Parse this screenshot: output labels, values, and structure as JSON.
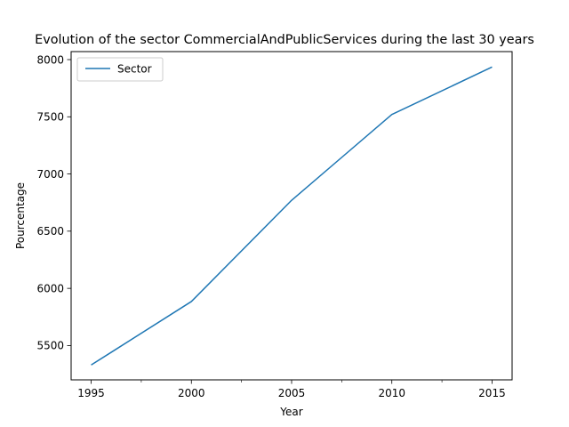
{
  "chart_data": {
    "type": "line",
    "title": "Evolution of the sector CommercialAndPublicServices during the last 30 years",
    "xlabel": "Year",
    "ylabel": "Pourcentage",
    "x": [
      1995,
      2000,
      2005,
      2010,
      2015
    ],
    "series": [
      {
        "name": "Sector",
        "values": [
          5330,
          5885,
          6770,
          7520,
          7935
        ],
        "color": "#1f77b4"
      }
    ],
    "xlim": [
      1994,
      2016
    ],
    "ylim": [
      5200,
      8070
    ],
    "xticks": [
      1995,
      2000,
      2005,
      2010,
      2015
    ],
    "xticks_minor": [
      1997.5,
      2002.5,
      2007.5,
      2012.5
    ],
    "yticks": [
      5500,
      6000,
      6500,
      7000,
      7500,
      8000
    ],
    "grid": false,
    "legend_position": "upper-left"
  }
}
